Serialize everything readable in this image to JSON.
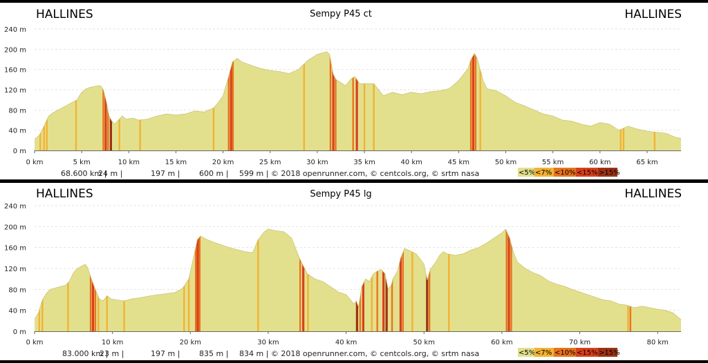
{
  "chart_data": [
    {
      "type": "area",
      "title": "Sempy P45 ct",
      "start_label": "HALLINES",
      "end_label": "HALLINES",
      "xlim": [
        0,
        68.6
      ],
      "ylim": [
        0,
        240
      ],
      "xticks": [
        0,
        5,
        10,
        15,
        20,
        25,
        30,
        35,
        40,
        45,
        50,
        55,
        60,
        65
      ],
      "xtick_unit": "km",
      "yticks": [
        0,
        40,
        80,
        120,
        160,
        200,
        240
      ],
      "ytick_unit": "m",
      "stats": [
        "68.600 km |",
        "24 m |",
        "197 m |",
        "600 m |",
        "599 m | © 2018 openrunner.com, © centcols.org, © srtm nasa"
      ],
      "legend": [
        {
          "label": "<5%",
          "color": "#e3e08d"
        },
        {
          "label": "<7%",
          "color": "#f2b233"
        },
        {
          "label": "<10%",
          "color": "#e8731f"
        },
        {
          "label": "<15%",
          "color": "#d8401c"
        },
        {
          "label": ">15%",
          "color": "#9c3215"
        }
      ],
      "profile": [
        [
          0,
          22
        ],
        [
          0.5,
          30
        ],
        [
          1,
          48
        ],
        [
          1.5,
          68
        ],
        [
          2,
          75
        ],
        [
          3,
          85
        ],
        [
          4,
          95
        ],
        [
          4.5,
          100
        ],
        [
          5,
          115
        ],
        [
          5.5,
          122
        ],
        [
          6,
          125
        ],
        [
          6.5,
          127
        ],
        [
          7,
          128
        ],
        [
          7.3,
          120
        ],
        [
          7.6,
          98
        ],
        [
          7.9,
          68
        ],
        [
          8.2,
          58
        ],
        [
          8.5,
          52
        ],
        [
          9,
          62
        ],
        [
          9.3,
          68
        ],
        [
          9.7,
          62
        ],
        [
          10.5,
          64
        ],
        [
          11,
          60
        ],
        [
          12,
          62
        ],
        [
          13,
          68
        ],
        [
          14,
          72
        ],
        [
          15,
          70
        ],
        [
          16,
          72
        ],
        [
          17,
          78
        ],
        [
          18,
          76
        ],
        [
          19,
          84
        ],
        [
          19.5,
          95
        ],
        [
          20,
          108
        ],
        [
          20.5,
          140
        ],
        [
          21,
          175
        ],
        [
          21.5,
          182
        ],
        [
          22,
          175
        ],
        [
          23,
          168
        ],
        [
          24,
          162
        ],
        [
          25,
          158
        ],
        [
          26,
          156
        ],
        [
          27,
          152
        ],
        [
          28,
          160
        ],
        [
          29,
          178
        ],
        [
          30,
          190
        ],
        [
          31,
          195
        ],
        [
          31.3,
          190
        ],
        [
          31.7,
          150
        ],
        [
          32,
          140
        ],
        [
          33,
          128
        ],
        [
          33.6,
          142
        ],
        [
          34,
          146
        ],
        [
          34.5,
          132
        ],
        [
          35,
          132
        ],
        [
          36,
          132
        ],
        [
          37,
          108
        ],
        [
          38,
          115
        ],
        [
          39,
          110
        ],
        [
          40,
          115
        ],
        [
          41,
          112
        ],
        [
          42,
          116
        ],
        [
          43,
          118
        ],
        [
          44,
          122
        ],
        [
          45,
          138
        ],
        [
          46,
          162
        ],
        [
          46.3,
          180
        ],
        [
          46.7,
          192
        ],
        [
          47,
          180
        ],
        [
          47.6,
          138
        ],
        [
          48,
          122
        ],
        [
          49,
          118
        ],
        [
          50,
          108
        ],
        [
          51,
          95
        ],
        [
          52,
          88
        ],
        [
          53,
          80
        ],
        [
          54,
          72
        ],
        [
          55,
          68
        ],
        [
          56,
          60
        ],
        [
          57,
          58
        ],
        [
          58,
          52
        ],
        [
          59,
          48
        ],
        [
          60,
          55
        ],
        [
          61,
          52
        ],
        [
          62,
          40
        ],
        [
          63,
          48
        ],
        [
          64,
          42
        ],
        [
          65,
          38
        ],
        [
          66,
          36
        ],
        [
          67,
          34
        ],
        [
          68,
          26
        ],
        [
          68.6,
          24
        ]
      ],
      "steep_marks": [
        {
          "x": 0.6,
          "c": 1
        },
        {
          "x": 1.0,
          "c": 1
        },
        {
          "x": 1.3,
          "c": 1
        },
        {
          "x": 4.4,
          "c": 1
        },
        {
          "x": 7.3,
          "c": 2
        },
        {
          "x": 7.55,
          "c": 3
        },
        {
          "x": 7.8,
          "c": 2
        },
        {
          "x": 8.1,
          "c": 4
        },
        {
          "x": 9.0,
          "c": 1
        },
        {
          "x": 11.2,
          "c": 1
        },
        {
          "x": 19.0,
          "c": 1
        },
        {
          "x": 20.6,
          "c": 2
        },
        {
          "x": 20.85,
          "c": 3
        },
        {
          "x": 21.05,
          "c": 2
        },
        {
          "x": 28.6,
          "c": 1
        },
        {
          "x": 31.4,
          "c": 2
        },
        {
          "x": 31.7,
          "c": 3
        },
        {
          "x": 31.95,
          "c": 2
        },
        {
          "x": 33.8,
          "c": 2
        },
        {
          "x": 34.2,
          "c": 3
        },
        {
          "x": 35.0,
          "c": 1
        },
        {
          "x": 36.0,
          "c": 1
        },
        {
          "x": 46.3,
          "c": 2
        },
        {
          "x": 46.55,
          "c": 3
        },
        {
          "x": 46.8,
          "c": 2
        },
        {
          "x": 47.3,
          "c": 1
        },
        {
          "x": 62.2,
          "c": 1
        },
        {
          "x": 62.5,
          "c": 1
        },
        {
          "x": 65.8,
          "c": 1
        }
      ]
    },
    {
      "type": "area",
      "title": "Sempy P45 lg",
      "start_label": "HALLINES",
      "end_label": "HALLINES",
      "xlim": [
        0,
        83
      ],
      "ylim": [
        0,
        240
      ],
      "xticks": [
        0,
        10,
        20,
        30,
        40,
        50,
        60,
        70,
        80
      ],
      "xtick_unit": "km",
      "yticks": [
        0,
        40,
        80,
        120,
        160,
        200,
        240
      ],
      "ytick_unit": "m",
      "stats": [
        "83.000 km |",
        "23 m |",
        "197 m |",
        "835 m |",
        "834 m | © 2018 openrunner.com, © centcols.org, © srtm nasa"
      ],
      "legend": [
        {
          "label": "<5%",
          "color": "#e3e08d"
        },
        {
          "label": "<7%",
          "color": "#f2b233"
        },
        {
          "label": "<10%",
          "color": "#e8731f"
        },
        {
          "label": "<15%",
          "color": "#d8401c"
        },
        {
          "label": ">15%",
          "color": "#9c3215"
        }
      ],
      "profile": [
        [
          0,
          23
        ],
        [
          0.5,
          35
        ],
        [
          1,
          60
        ],
        [
          1.5,
          72
        ],
        [
          2,
          80
        ],
        [
          3,
          84
        ],
        [
          4,
          88
        ],
        [
          4.5,
          96
        ],
        [
          5,
          112
        ],
        [
          5.5,
          120
        ],
        [
          6,
          124
        ],
        [
          6.5,
          128
        ],
        [
          6.8,
          122
        ],
        [
          7.3,
          100
        ],
        [
          7.8,
          80
        ],
        [
          8.3,
          62
        ],
        [
          8.8,
          58
        ],
        [
          9.3,
          68
        ],
        [
          9.8,
          62
        ],
        [
          10.5,
          60
        ],
        [
          11.5,
          58
        ],
        [
          12.5,
          62
        ],
        [
          13.5,
          64
        ],
        [
          15,
          68
        ],
        [
          16,
          70
        ],
        [
          17,
          72
        ],
        [
          18,
          74
        ],
        [
          19,
          82
        ],
        [
          19.8,
          100
        ],
        [
          20.4,
          140
        ],
        [
          20.9,
          175
        ],
        [
          21.3,
          182
        ],
        [
          22,
          176
        ],
        [
          23,
          170
        ],
        [
          24,
          165
        ],
        [
          25,
          160
        ],
        [
          26,
          156
        ],
        [
          27,
          152
        ],
        [
          28,
          150
        ],
        [
          28.7,
          175
        ],
        [
          29.5,
          190
        ],
        [
          30,
          195
        ],
        [
          31,
          192
        ],
        [
          32,
          190
        ],
        [
          33,
          178
        ],
        [
          34,
          140
        ],
        [
          35,
          110
        ],
        [
          36,
          100
        ],
        [
          37,
          95
        ],
        [
          38,
          85
        ],
        [
          39,
          75
        ],
        [
          40,
          70
        ],
        [
          41,
          52
        ],
        [
          41.3,
          58
        ],
        [
          41.6,
          46
        ],
        [
          42,
          85
        ],
        [
          42.5,
          100
        ],
        [
          43,
          95
        ],
        [
          43.5,
          110
        ],
        [
          44,
          115
        ],
        [
          44.5,
          118
        ],
        [
          45,
          110
        ],
        [
          45.4,
          80
        ],
        [
          45.8,
          88
        ],
        [
          46,
          100
        ],
        [
          46.6,
          115
        ],
        [
          47,
          140
        ],
        [
          47.5,
          158
        ],
        [
          48,
          155
        ],
        [
          49,
          148
        ],
        [
          50,
          128
        ],
        [
          50.4,
          98
        ],
        [
          50.8,
          118
        ],
        [
          51.5,
          132
        ],
        [
          52,
          145
        ],
        [
          52.5,
          152
        ],
        [
          53,
          148
        ],
        [
          54,
          145
        ],
        [
          55,
          148
        ],
        [
          56,
          155
        ],
        [
          57,
          160
        ],
        [
          58,
          168
        ],
        [
          59,
          178
        ],
        [
          60,
          188
        ],
        [
          60.5,
          195
        ],
        [
          61,
          178
        ],
        [
          61.5,
          150
        ],
        [
          62,
          132
        ],
        [
          63,
          120
        ],
        [
          64,
          112
        ],
        [
          65,
          106
        ],
        [
          66,
          96
        ],
        [
          67,
          90
        ],
        [
          68,
          86
        ],
        [
          69,
          80
        ],
        [
          70,
          75
        ],
        [
          71,
          70
        ],
        [
          72,
          65
        ],
        [
          73,
          60
        ],
        [
          74,
          58
        ],
        [
          75,
          52
        ],
        [
          76,
          50
        ],
        [
          77,
          45
        ],
        [
          78,
          48
        ],
        [
          79,
          45
        ],
        [
          80,
          42
        ],
        [
          81,
          40
        ],
        [
          82,
          35
        ],
        [
          83,
          22
        ]
      ],
      "steep_marks": [
        {
          "x": 0.6,
          "c": 1
        },
        {
          "x": 1.0,
          "c": 1
        },
        {
          "x": 4.3,
          "c": 1
        },
        {
          "x": 7.2,
          "c": 2
        },
        {
          "x": 7.5,
          "c": 3
        },
        {
          "x": 7.8,
          "c": 2
        },
        {
          "x": 8.2,
          "c": 1
        },
        {
          "x": 9.3,
          "c": 1
        },
        {
          "x": 11.5,
          "c": 1
        },
        {
          "x": 19.2,
          "c": 1
        },
        {
          "x": 19.8,
          "c": 1
        },
        {
          "x": 20.7,
          "c": 2
        },
        {
          "x": 20.95,
          "c": 3
        },
        {
          "x": 21.2,
          "c": 2
        },
        {
          "x": 28.7,
          "c": 1
        },
        {
          "x": 34.1,
          "c": 2
        },
        {
          "x": 34.5,
          "c": 3
        },
        {
          "x": 35.1,
          "c": 1
        },
        {
          "x": 41.4,
          "c": 4
        },
        {
          "x": 41.8,
          "c": 2
        },
        {
          "x": 42.2,
          "c": 3
        },
        {
          "x": 43.3,
          "c": 1
        },
        {
          "x": 44.0,
          "c": 2
        },
        {
          "x": 44.8,
          "c": 3
        },
        {
          "x": 45.2,
          "c": 4
        },
        {
          "x": 45.9,
          "c": 2
        },
        {
          "x": 47.0,
          "c": 3
        },
        {
          "x": 47.3,
          "c": 2
        },
        {
          "x": 48.5,
          "c": 1
        },
        {
          "x": 50.4,
          "c": 4
        },
        {
          "x": 50.7,
          "c": 2
        },
        {
          "x": 53.2,
          "c": 1
        },
        {
          "x": 60.6,
          "c": 2
        },
        {
          "x": 60.9,
          "c": 3
        },
        {
          "x": 61.2,
          "c": 2
        },
        {
          "x": 76.2,
          "c": 1
        },
        {
          "x": 76.5,
          "c": 2
        }
      ]
    }
  ]
}
